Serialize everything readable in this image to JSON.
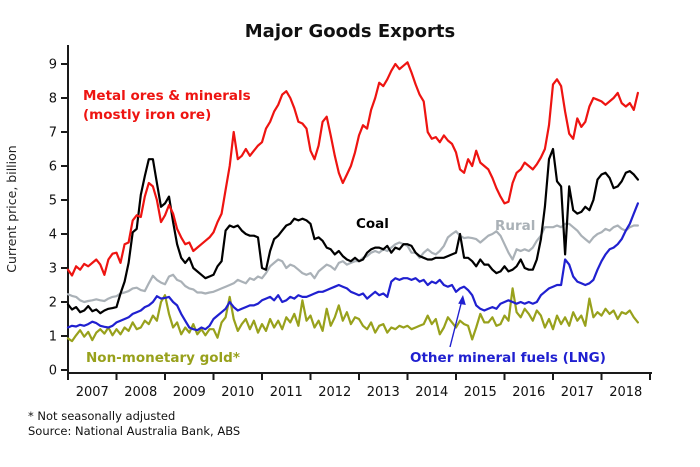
{
  "title": "Major Goods Exports",
  "y_axis": {
    "label": "Current price, billion",
    "ticks": [
      0,
      1,
      2,
      3,
      4,
      5,
      6,
      7,
      8,
      9
    ]
  },
  "x_axis": {
    "ticks": [
      2007,
      2008,
      2009,
      2010,
      2011,
      2012,
      2013,
      2014,
      2015,
      2016,
      2017,
      2018
    ]
  },
  "footnotes": {
    "note": "* Not seasonally adjusted",
    "source": "Source: National Australia Bank, ABS"
  },
  "series_labels": {
    "metal_line1": "Metal ores & minerals",
    "metal_line2": "(mostly iron ore)",
    "coal": "Coal",
    "rural": "Rural",
    "gold": "Non-monetary gold*",
    "lng": "Other mineral fuels (LNG)"
  },
  "colors": {
    "metal": "#ee1411",
    "coal": "#000000",
    "rural": "#aab1b7",
    "lng": "#2020d0",
    "gold": "#98a11c",
    "axis": "#1a1a1a"
  },
  "chart_data": {
    "type": "line",
    "title": "Major Goods Exports",
    "xlabel": "",
    "ylabel": "Current price, billion",
    "x_start_year": 2007,
    "x_step": "monthly",
    "xlim": [
      2007,
      2019
    ],
    "ylim": [
      0,
      9.5
    ],
    "grid": false,
    "legend_position": "inline-annotations",
    "series": [
      {
        "name": "Metal ores & minerals (mostly iron ore)",
        "color_key": "metal",
        "values": [
          2.95,
          2.78,
          3.05,
          2.95,
          3.12,
          3.05,
          3.15,
          3.25,
          3.1,
          2.8,
          3.25,
          3.42,
          3.45,
          3.15,
          3.7,
          3.75,
          4.4,
          4.55,
          4.5,
          5.1,
          5.5,
          5.4,
          5.0,
          4.35,
          4.55,
          4.85,
          4.6,
          4.15,
          3.9,
          3.7,
          3.75,
          3.5,
          3.6,
          3.7,
          3.8,
          3.9,
          4.05,
          4.35,
          4.6,
          5.3,
          6.0,
          7.0,
          6.2,
          6.3,
          6.5,
          6.3,
          6.45,
          6.6,
          6.7,
          7.1,
          7.3,
          7.6,
          7.8,
          8.1,
          8.2,
          8.0,
          7.7,
          7.3,
          7.25,
          7.1,
          6.45,
          6.2,
          6.6,
          7.3,
          7.45,
          6.9,
          6.3,
          5.8,
          5.5,
          5.75,
          6.0,
          6.4,
          6.9,
          7.2,
          7.1,
          7.65,
          8.0,
          8.45,
          8.35,
          8.55,
          8.8,
          9.0,
          8.85,
          8.95,
          9.05,
          8.75,
          8.4,
          8.1,
          7.9,
          7.0,
          6.8,
          6.85,
          6.7,
          6.9,
          6.75,
          6.65,
          6.4,
          5.9,
          5.8,
          6.2,
          6.0,
          6.45,
          6.1,
          6.0,
          5.9,
          5.65,
          5.35,
          5.1,
          4.9,
          4.95,
          5.5,
          5.8,
          5.9,
          6.1,
          6.0,
          5.9,
          6.05,
          6.25,
          6.5,
          7.2,
          8.4,
          8.55,
          8.35,
          7.6,
          6.95,
          6.8,
          7.4,
          7.15,
          7.3,
          7.75,
          8.0,
          7.95,
          7.9,
          7.8,
          7.9,
          8.0,
          8.15,
          7.85,
          7.75,
          7.85,
          7.65,
          8.15
        ]
      },
      {
        "name": "Coal",
        "color_key": "coal",
        "values": [
          1.93,
          1.78,
          1.85,
          1.7,
          1.75,
          1.88,
          1.73,
          1.78,
          1.67,
          1.75,
          1.8,
          1.82,
          1.85,
          2.25,
          2.6,
          3.15,
          4.05,
          4.15,
          5.15,
          5.7,
          6.2,
          6.2,
          5.5,
          4.8,
          4.9,
          5.1,
          4.35,
          3.7,
          3.3,
          3.15,
          3.3,
          3.0,
          2.9,
          2.8,
          2.7,
          2.75,
          2.8,
          3.05,
          3.2,
          4.1,
          4.25,
          4.2,
          4.25,
          4.1,
          4.0,
          3.95,
          3.95,
          3.9,
          3.0,
          2.95,
          3.5,
          3.85,
          3.95,
          4.1,
          4.25,
          4.3,
          4.45,
          4.4,
          4.45,
          4.4,
          4.3,
          3.85,
          3.9,
          3.8,
          3.6,
          3.55,
          3.4,
          3.5,
          3.35,
          3.25,
          3.2,
          3.3,
          3.2,
          3.25,
          3.45,
          3.55,
          3.6,
          3.6,
          3.55,
          3.65,
          3.45,
          3.6,
          3.55,
          3.7,
          3.7,
          3.65,
          3.45,
          3.35,
          3.3,
          3.25,
          3.25,
          3.3,
          3.3,
          3.3,
          3.35,
          3.4,
          3.45,
          4.0,
          3.3,
          3.3,
          3.2,
          3.05,
          3.25,
          3.1,
          3.1,
          2.95,
          2.85,
          2.9,
          3.05,
          2.9,
          2.95,
          3.05,
          3.25,
          3.0,
          2.95,
          2.95,
          3.25,
          3.85,
          4.8,
          6.2,
          6.5,
          5.55,
          5.4,
          3.4,
          5.4,
          4.7,
          4.6,
          4.65,
          4.8,
          4.7,
          5.0,
          5.6,
          5.75,
          5.8,
          5.65,
          5.35,
          5.4,
          5.55,
          5.8,
          5.85,
          5.75,
          5.6
        ]
      },
      {
        "name": "Rural",
        "color_key": "rural",
        "values": [
          2.23,
          2.18,
          2.15,
          2.05,
          2.0,
          2.03,
          2.05,
          2.08,
          2.05,
          2.03,
          2.1,
          2.15,
          2.17,
          2.25,
          2.28,
          2.32,
          2.4,
          2.42,
          2.35,
          2.32,
          2.55,
          2.77,
          2.65,
          2.57,
          2.52,
          2.75,
          2.8,
          2.65,
          2.6,
          2.47,
          2.4,
          2.37,
          2.28,
          2.28,
          2.25,
          2.28,
          2.3,
          2.35,
          2.4,
          2.45,
          2.5,
          2.55,
          2.65,
          2.6,
          2.55,
          2.7,
          2.65,
          2.75,
          2.7,
          2.85,
          3.05,
          3.15,
          3.25,
          3.2,
          3.0,
          3.1,
          3.05,
          2.95,
          2.85,
          2.8,
          2.85,
          2.7,
          2.9,
          3.0,
          3.1,
          3.05,
          2.95,
          3.15,
          3.2,
          3.1,
          3.15,
          3.2,
          3.2,
          3.3,
          3.35,
          3.45,
          3.5,
          3.45,
          3.55,
          3.5,
          3.6,
          3.7,
          3.75,
          3.7,
          3.65,
          3.45,
          3.45,
          3.3,
          3.45,
          3.55,
          3.45,
          3.4,
          3.5,
          3.65,
          3.9,
          4.0,
          4.08,
          3.95,
          3.88,
          3.9,
          3.88,
          3.85,
          3.75,
          3.85,
          3.95,
          4.0,
          4.08,
          3.95,
          3.7,
          3.45,
          3.25,
          3.55,
          3.5,
          3.55,
          3.5,
          3.6,
          3.8,
          3.95,
          4.2,
          4.2,
          4.2,
          4.25,
          4.2,
          4.3,
          4.3,
          4.2,
          4.1,
          3.95,
          3.85,
          3.75,
          3.9,
          4.0,
          4.05,
          4.15,
          4.1,
          4.2,
          4.25,
          4.15,
          4.1,
          4.2,
          4.25,
          4.25
        ]
      },
      {
        "name": "Other mineral fuels (LNG)",
        "color_key": "lng",
        "values": [
          1.25,
          1.3,
          1.28,
          1.33,
          1.3,
          1.35,
          1.42,
          1.38,
          1.3,
          1.27,
          1.25,
          1.3,
          1.4,
          1.45,
          1.5,
          1.55,
          1.65,
          1.7,
          1.75,
          1.85,
          1.9,
          2.0,
          2.17,
          2.1,
          2.12,
          2.15,
          2.0,
          1.9,
          1.65,
          1.45,
          1.25,
          1.2,
          1.17,
          1.25,
          1.2,
          1.3,
          1.5,
          1.6,
          1.7,
          1.8,
          2.0,
          1.85,
          1.75,
          1.8,
          1.85,
          1.9,
          1.9,
          1.95,
          2.05,
          2.1,
          2.15,
          2.05,
          2.2,
          2.0,
          2.05,
          2.15,
          2.1,
          2.2,
          2.15,
          2.15,
          2.2,
          2.25,
          2.3,
          2.3,
          2.35,
          2.4,
          2.45,
          2.5,
          2.45,
          2.4,
          2.3,
          2.25,
          2.2,
          2.25,
          2.1,
          2.2,
          2.3,
          2.2,
          2.25,
          2.15,
          2.6,
          2.7,
          2.65,
          2.7,
          2.7,
          2.65,
          2.7,
          2.6,
          2.65,
          2.5,
          2.6,
          2.55,
          2.65,
          2.5,
          2.45,
          2.5,
          2.3,
          2.4,
          2.45,
          2.35,
          2.2,
          1.9,
          1.8,
          1.75,
          1.8,
          1.85,
          1.8,
          1.95,
          2.0,
          2.05,
          2.0,
          1.95,
          2.0,
          1.95,
          2.0,
          1.95,
          2.0,
          2.2,
          2.3,
          2.4,
          2.45,
          2.5,
          2.5,
          3.25,
          3.1,
          2.75,
          2.6,
          2.55,
          2.5,
          2.55,
          2.65,
          2.95,
          3.2,
          3.4,
          3.55,
          3.6,
          3.7,
          3.85,
          4.1,
          4.3,
          4.6,
          4.9
        ]
      },
      {
        "name": "Non-monetary gold*",
        "color_key": "gold",
        "values": [
          0.93,
          0.85,
          1.02,
          1.17,
          0.98,
          1.12,
          0.88,
          1.1,
          1.2,
          1.07,
          1.25,
          1.02,
          1.2,
          1.05,
          1.25,
          1.15,
          1.4,
          1.2,
          1.25,
          1.45,
          1.35,
          1.6,
          1.45,
          2.0,
          2.2,
          1.65,
          1.25,
          1.4,
          1.05,
          1.25,
          1.1,
          1.35,
          1.05,
          1.2,
          1.02,
          1.2,
          1.2,
          0.95,
          1.4,
          1.55,
          2.15,
          1.5,
          1.15,
          1.35,
          1.5,
          1.2,
          1.45,
          1.1,
          1.35,
          1.15,
          1.5,
          1.25,
          1.45,
          1.2,
          1.55,
          1.4,
          1.65,
          1.3,
          2.05,
          1.45,
          1.6,
          1.25,
          1.45,
          1.15,
          1.8,
          1.3,
          1.55,
          1.9,
          1.45,
          1.7,
          1.35,
          1.55,
          1.5,
          1.3,
          1.2,
          1.4,
          1.1,
          1.3,
          1.35,
          1.1,
          1.25,
          1.2,
          1.3,
          1.25,
          1.3,
          1.2,
          1.25,
          1.3,
          1.35,
          1.6,
          1.35,
          1.5,
          1.05,
          1.25,
          1.55,
          1.4,
          1.25,
          1.45,
          1.35,
          1.3,
          0.9,
          1.25,
          1.65,
          1.4,
          1.4,
          1.55,
          1.3,
          1.35,
          1.6,
          1.45,
          2.4,
          1.7,
          1.55,
          1.8,
          1.65,
          1.45,
          1.75,
          1.6,
          1.25,
          1.5,
          1.2,
          1.6,
          1.35,
          1.55,
          1.3,
          1.7,
          1.45,
          1.6,
          1.3,
          2.1,
          1.55,
          1.7,
          1.6,
          1.8,
          1.65,
          1.75,
          1.5,
          1.7,
          1.65,
          1.75,
          1.55,
          1.4
        ]
      }
    ]
  }
}
